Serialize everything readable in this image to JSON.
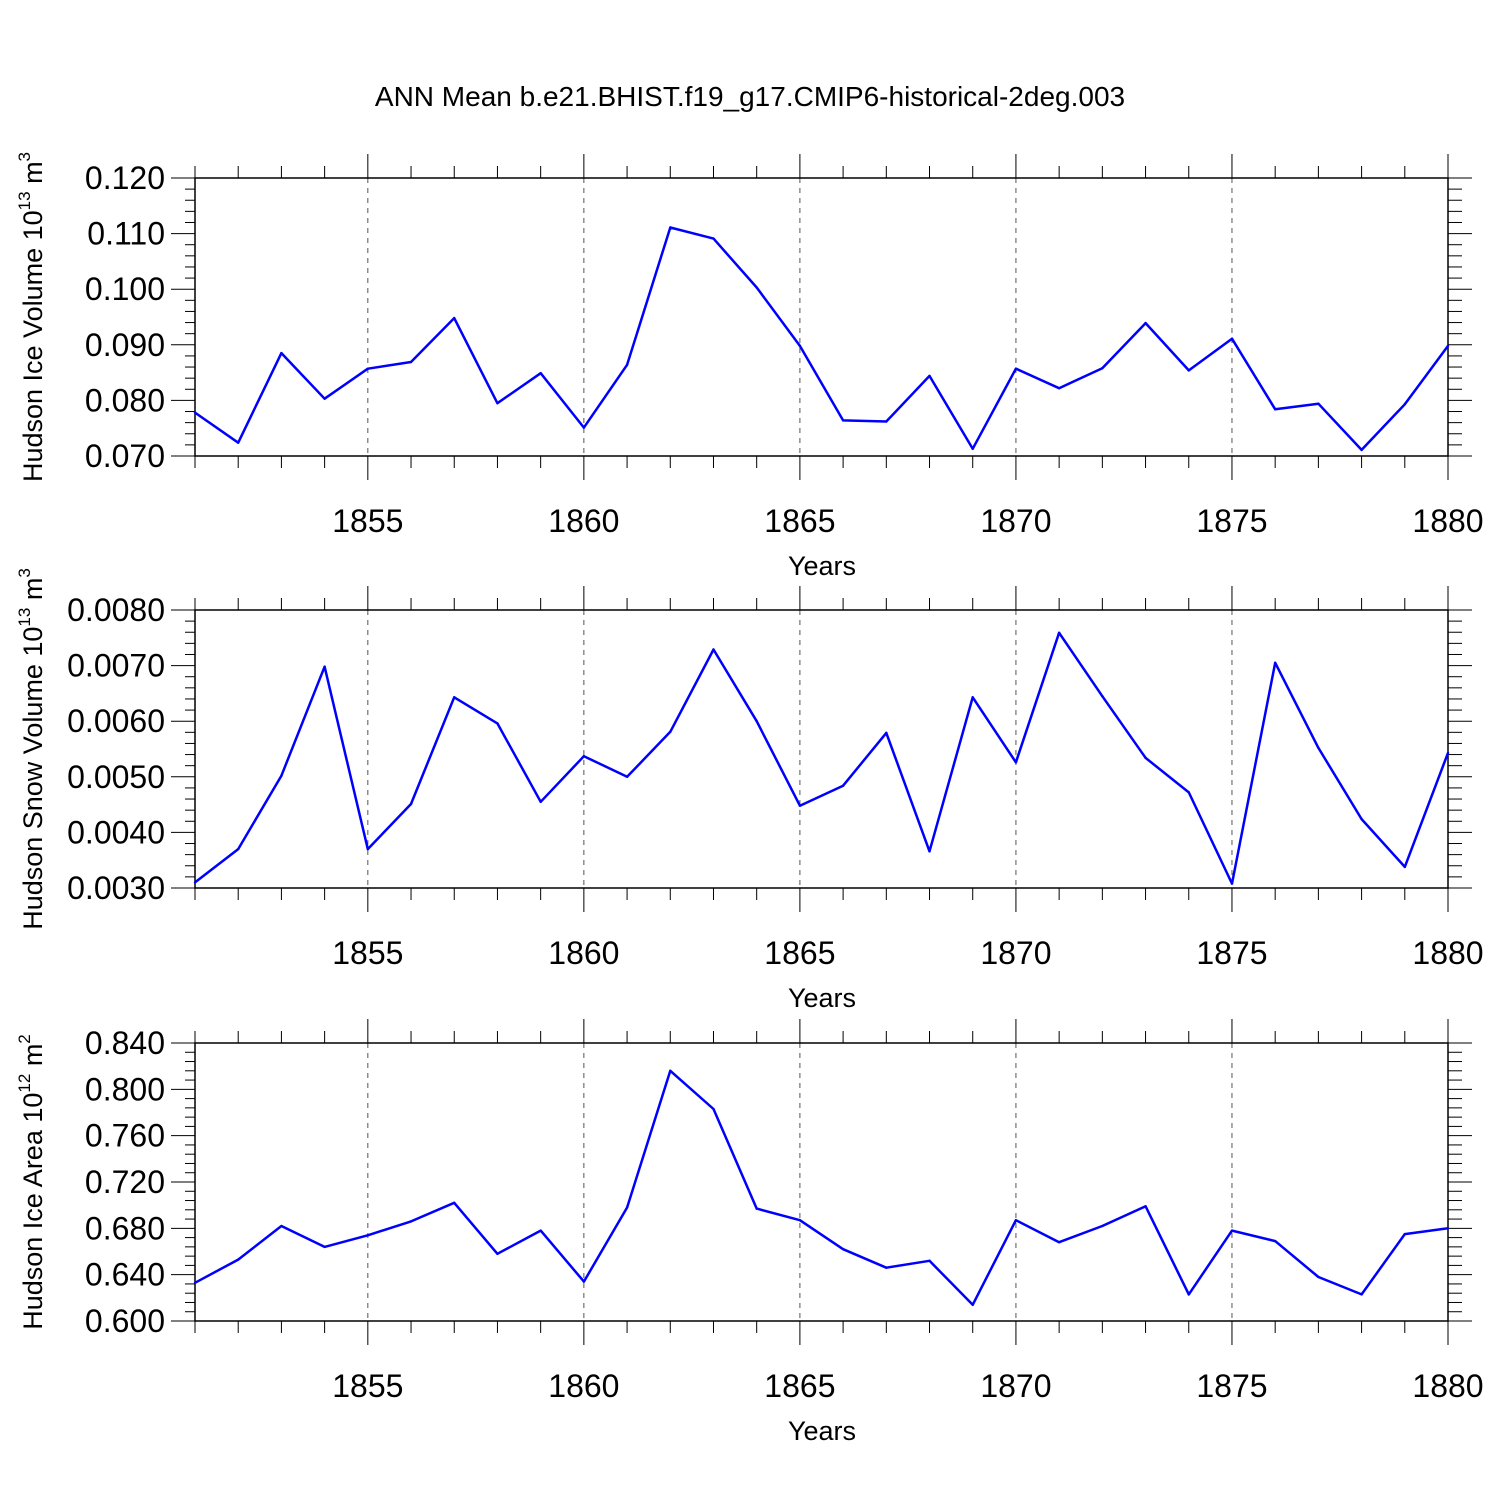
{
  "figure": {
    "title": "ANN Mean b.e21.BHIST.f19_g17.CMIP6-historical-2deg.003",
    "line_color": "#0000ff",
    "grid_style": "dashed vertical lines at major x ticks"
  },
  "chart_data": [
    {
      "type": "line",
      "xlabel": "Years",
      "ylabel": {
        "text": "Hudson Ice Volume 10",
        "exponent": "13",
        "unit": " m",
        "unit_exponent": "3"
      },
      "xlim": [
        1851,
        1880
      ],
      "ylim": [
        0.07,
        0.12
      ],
      "xticks": [
        1855,
        1860,
        1865,
        1870,
        1875,
        1880
      ],
      "xtick_labels": [
        "1855",
        "1860",
        "1865",
        "1870",
        "1875",
        "1880"
      ],
      "yticks": [
        0.07,
        0.08,
        0.09,
        0.1,
        0.11,
        0.12
      ],
      "ytick_labels": [
        "0.070",
        "0.080",
        "0.090",
        "0.100",
        "0.110",
        "0.120"
      ],
      "grid": true,
      "x": [
        1851,
        1852,
        1853,
        1854,
        1855,
        1856,
        1857,
        1858,
        1859,
        1860,
        1861,
        1862,
        1863,
        1864,
        1865,
        1866,
        1867,
        1868,
        1869,
        1870,
        1871,
        1872,
        1873,
        1874,
        1875,
        1876,
        1877,
        1878,
        1879,
        1880
      ],
      "values": [
        0.0778,
        0.0724,
        0.0885,
        0.0803,
        0.0857,
        0.0869,
        0.0948,
        0.0795,
        0.0849,
        0.0751,
        0.0864,
        0.1111,
        0.1091,
        0.1003,
        0.0898,
        0.0764,
        0.0762,
        0.0844,
        0.0713,
        0.0857,
        0.0822,
        0.0858,
        0.0939,
        0.0854,
        0.0911,
        0.0784,
        0.0794,
        0.0711,
        0.0793,
        0.0898
      ]
    },
    {
      "type": "line",
      "xlabel": "Years",
      "ylabel": {
        "text": "Hudson Snow Volume 10",
        "exponent": "13",
        "unit": " m",
        "unit_exponent": "3"
      },
      "xlim": [
        1851,
        1880
      ],
      "ylim": [
        0.003,
        0.008
      ],
      "xticks": [
        1855,
        1860,
        1865,
        1870,
        1875,
        1880
      ],
      "xtick_labels": [
        "1855",
        "1860",
        "1865",
        "1870",
        "1875",
        "1880"
      ],
      "yticks": [
        0.003,
        0.004,
        0.005,
        0.006,
        0.007,
        0.008
      ],
      "ytick_labels": [
        "0.0030",
        "0.0040",
        "0.0050",
        "0.0060",
        "0.0070",
        "0.0080"
      ],
      "grid": true,
      "x": [
        1851,
        1852,
        1853,
        1854,
        1855,
        1856,
        1857,
        1858,
        1859,
        1860,
        1861,
        1862,
        1863,
        1864,
        1865,
        1866,
        1867,
        1868,
        1869,
        1870,
        1871,
        1872,
        1873,
        1874,
        1875,
        1876,
        1877,
        1878,
        1879,
        1880
      ],
      "values": [
        0.0031,
        0.0037,
        0.00502,
        0.00698,
        0.0037,
        0.00451,
        0.00643,
        0.00596,
        0.00455,
        0.00537,
        0.005,
        0.00581,
        0.00729,
        0.006,
        0.00448,
        0.00484,
        0.00579,
        0.00366,
        0.00643,
        0.00526,
        0.00759,
        0.00645,
        0.00534,
        0.00472,
        0.00308,
        0.00705,
        0.00552,
        0.00424,
        0.00338,
        0.00543
      ]
    },
    {
      "type": "line",
      "xlabel": "Years",
      "ylabel": {
        "text": "Hudson Ice Area 10",
        "exponent": "12",
        "unit": " m",
        "unit_exponent": "2"
      },
      "xlim": [
        1851,
        1880
      ],
      "ylim": [
        0.6,
        0.84
      ],
      "xticks": [
        1855,
        1860,
        1865,
        1870,
        1875,
        1880
      ],
      "xtick_labels": [
        "1855",
        "1860",
        "1865",
        "1870",
        "1875",
        "1880"
      ],
      "yticks": [
        0.6,
        0.64,
        0.68,
        0.72,
        0.76,
        0.8,
        0.84
      ],
      "ytick_labels": [
        "0.600",
        "0.640",
        "0.680",
        "0.720",
        "0.760",
        "0.800",
        "0.840"
      ],
      "grid": true,
      "x": [
        1851,
        1852,
        1853,
        1854,
        1855,
        1856,
        1857,
        1858,
        1859,
        1860,
        1861,
        1862,
        1863,
        1864,
        1865,
        1866,
        1867,
        1868,
        1869,
        1870,
        1871,
        1872,
        1873,
        1874,
        1875,
        1876,
        1877,
        1878,
        1879,
        1880
      ],
      "values": [
        0.633,
        0.653,
        0.682,
        0.664,
        0.674,
        0.686,
        0.702,
        0.658,
        0.678,
        0.634,
        0.698,
        0.816,
        0.783,
        0.697,
        0.687,
        0.662,
        0.646,
        0.652,
        0.614,
        0.687,
        0.668,
        0.682,
        0.699,
        0.623,
        0.678,
        0.669,
        0.638,
        0.623,
        0.675,
        0.68
      ]
    }
  ]
}
